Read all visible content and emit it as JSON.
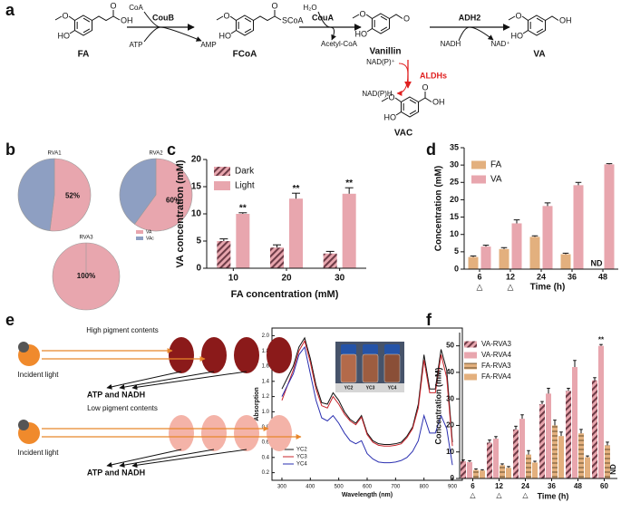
{
  "panel_labels": [
    "a",
    "b",
    "c",
    "d",
    "e",
    "f"
  ],
  "scheme": {
    "compounds": [
      {
        "name": "FA",
        "atoms": [
          "O",
          "HO",
          "O",
          "OH"
        ]
      },
      {
        "name": "FCoA",
        "atoms": [
          "O",
          "HO",
          "O",
          "SCoA"
        ]
      },
      {
        "name": "Vanillin",
        "atoms": [
          "O",
          "HO",
          "O"
        ]
      },
      {
        "name": "VA",
        "atoms": [
          "O",
          "HO",
          "OH"
        ]
      },
      {
        "name": "VAC",
        "atoms": [
          "O",
          "HO",
          "O",
          "OH"
        ]
      }
    ],
    "steps": [
      {
        "enzyme": "CouB",
        "inputs": [
          "CoA",
          "ATP"
        ],
        "outputs": [
          "AMP"
        ]
      },
      {
        "enzyme": "CouA",
        "inputs": [
          "H₂O"
        ],
        "outputs": [
          "Acetyl-CoA"
        ]
      },
      {
        "enzyme": "ADH2",
        "inputs": [
          "NADH"
        ],
        "outputs": [
          "NAD⁺"
        ]
      },
      {
        "enzyme": "ALDHs",
        "inputs": [
          "NAD(P)⁺"
        ],
        "outputs": [
          "NAD(P)H"
        ]
      }
    ]
  },
  "chart_data": [
    {
      "type": "pie",
      "categories": [
        "VA",
        "VAc"
      ],
      "colors": [
        "#e8a6ae",
        "#8e9fc2"
      ],
      "pies": [
        {
          "title": "RVA1",
          "values": [
            52,
            48
          ],
          "value_labels": [
            "52%",
            null
          ]
        },
        {
          "title": "RVA2",
          "values": [
            60,
            40
          ],
          "value_labels": [
            "60%",
            null
          ]
        },
        {
          "title": "RVA3",
          "values": [
            100,
            0
          ],
          "value_labels": [
            "100%",
            null
          ]
        }
      ]
    },
    {
      "type": "bar",
      "ylabel": "VA concentration (mM)",
      "xlabel": "FA concentration (mM)",
      "categories": [
        "10",
        "20",
        "30"
      ],
      "series": [
        {
          "name": "Dark",
          "color": "#e8a6ae",
          "hatch": "diagonal",
          "values": [
            5.0,
            3.8,
            2.7
          ],
          "errors": [
            0.4,
            0.5,
            0.4
          ]
        },
        {
          "name": "Light",
          "color": "#e8a6ae",
          "values": [
            10.0,
            12.8,
            13.7
          ],
          "errors": [
            0.2,
            1.0,
            1.1
          ],
          "significance": [
            "**",
            "**",
            "**"
          ]
        }
      ],
      "ylim": [
        0,
        20
      ],
      "yticks": [
        0,
        5,
        10,
        15,
        20
      ],
      "legend": "top-left"
    },
    {
      "type": "bar",
      "ylabel": "Concentration (mM)",
      "xlabel": "Time (h)",
      "categories": [
        "6",
        "12",
        "24",
        "36",
        "48"
      ],
      "category_marks": [
        "△",
        "△",
        null,
        null,
        null
      ],
      "series": [
        {
          "name": "FA",
          "color": "#e3b07e",
          "values": [
            3.5,
            5.8,
            9.3,
            4.3,
            null
          ],
          "errors": [
            0.3,
            0.4,
            0.3,
            0.3,
            null
          ],
          "null_label": "ND"
        },
        {
          "name": "VA",
          "color": "#e8a6ae",
          "values": [
            6.5,
            13.2,
            18.2,
            24.2,
            30.2
          ],
          "errors": [
            0.4,
            1.0,
            0.9,
            0.8,
            0.2
          ]
        }
      ],
      "ylim": [
        0,
        35
      ],
      "yticks": [
        0,
        5,
        10,
        15,
        20,
        25,
        30,
        35
      ],
      "legend": "top-left"
    },
    {
      "type": "line",
      "ylabel": "Absorption",
      "xlabel": "Wavelength (nm)",
      "x": [
        300,
        320,
        340,
        360,
        380,
        400,
        420,
        440,
        460,
        480,
        500,
        520,
        540,
        560,
        580,
        600,
        620,
        640,
        660,
        680,
        700,
        720,
        740,
        760,
        780,
        800,
        820,
        840,
        860,
        880,
        900
      ],
      "series": [
        {
          "name": "YC2",
          "color": "#111111",
          "values": [
            1.3,
            1.45,
            1.6,
            1.85,
            1.97,
            1.7,
            1.35,
            1.12,
            1.1,
            1.25,
            1.15,
            1.0,
            0.9,
            0.85,
            0.95,
            0.72,
            0.62,
            0.58,
            0.57,
            0.57,
            0.58,
            0.6,
            0.68,
            0.8,
            1.1,
            1.75,
            1.3,
            1.3,
            1.82,
            1.55,
            0.6
          ]
        },
        {
          "name": "YC3",
          "color": "#c8242b",
          "values": [
            1.15,
            1.35,
            1.55,
            1.8,
            1.93,
            1.65,
            1.3,
            1.08,
            1.05,
            1.2,
            1.1,
            0.97,
            0.88,
            0.83,
            0.93,
            0.7,
            0.6,
            0.56,
            0.55,
            0.55,
            0.56,
            0.58,
            0.66,
            0.78,
            1.05,
            1.68,
            1.25,
            1.25,
            1.75,
            1.45,
            0.55
          ]
        },
        {
          "name": "YC4",
          "color": "#2a2fb0",
          "values": [
            1.2,
            1.35,
            1.5,
            1.75,
            1.85,
            1.5,
            1.15,
            0.92,
            0.88,
            0.95,
            0.85,
            0.72,
            0.62,
            0.58,
            0.62,
            0.45,
            0.38,
            0.34,
            0.33,
            0.33,
            0.34,
            0.36,
            0.4,
            0.48,
            0.62,
            0.95,
            0.72,
            0.72,
            0.95,
            0.78,
            0.3
          ]
        }
      ],
      "xlim": [
        265,
        935
      ],
      "ylim": [
        0.1,
        2.1
      ],
      "xticks": [
        300,
        400,
        500,
        600,
        700,
        800,
        900
      ],
      "yticks": [
        0.2,
        0.4,
        0.6,
        0.8,
        {
          "value": 1,
          "label": "1.0"
        },
        1.2,
        1.4,
        1.6,
        1.8,
        {
          "value": 2,
          "label": "2.0"
        }
      ],
      "legend": "bottom-left"
    },
    {
      "type": "bar",
      "ylabel": "Concentration (mM)",
      "xlabel": "Time (h)",
      "categories": [
        "6",
        "12",
        "24",
        "36",
        "48",
        "60"
      ],
      "category_marks": [
        "△",
        "△",
        "△",
        null,
        null,
        null
      ],
      "series": [
        {
          "name": "VA-RVA3",
          "color": "#e8a6ae",
          "hatch": "diagonal",
          "values": [
            6.5,
            13.5,
            18.5,
            28,
            33,
            37
          ],
          "errors": [
            0.5,
            1,
            1.2,
            1,
            1,
            1
          ]
        },
        {
          "name": "VA-RVA4",
          "color": "#e8a6ae",
          "values": [
            6.2,
            15,
            22.5,
            32,
            42,
            50
          ],
          "errors": [
            0.5,
            0.8,
            1.5,
            2,
            2.5,
            0.5
          ],
          "significance": [
            null,
            null,
            null,
            null,
            null,
            "**"
          ]
        },
        {
          "name": "FA-RVA3",
          "color": "#e3b07e",
          "hatch": "horizontal",
          "values": [
            3.2,
            5,
            9,
            20,
            17,
            12.5
          ],
          "errors": [
            0.4,
            0.5,
            1.5,
            2,
            1.5,
            1.2
          ]
        },
        {
          "name": "FA-RVA4",
          "color": "#e3b07e",
          "values": [
            3,
            4,
            6,
            16,
            8,
            null
          ],
          "errors": [
            0.3,
            0.5,
            0.5,
            1.5,
            0.5,
            null
          ],
          "null_label": "ND"
        }
      ],
      "ylim": [
        0,
        55
      ],
      "yticks": [
        0,
        10,
        20,
        30,
        40,
        50
      ],
      "legend": "top-left"
    }
  ],
  "diagram_e": {
    "rows": [
      {
        "title": "High pigment contents",
        "source": "Incident light",
        "product": "ATP and NADH"
      },
      {
        "title": "Low pigment contents",
        "source": "Incident light",
        "product": "ATP and NADH"
      }
    ]
  }
}
